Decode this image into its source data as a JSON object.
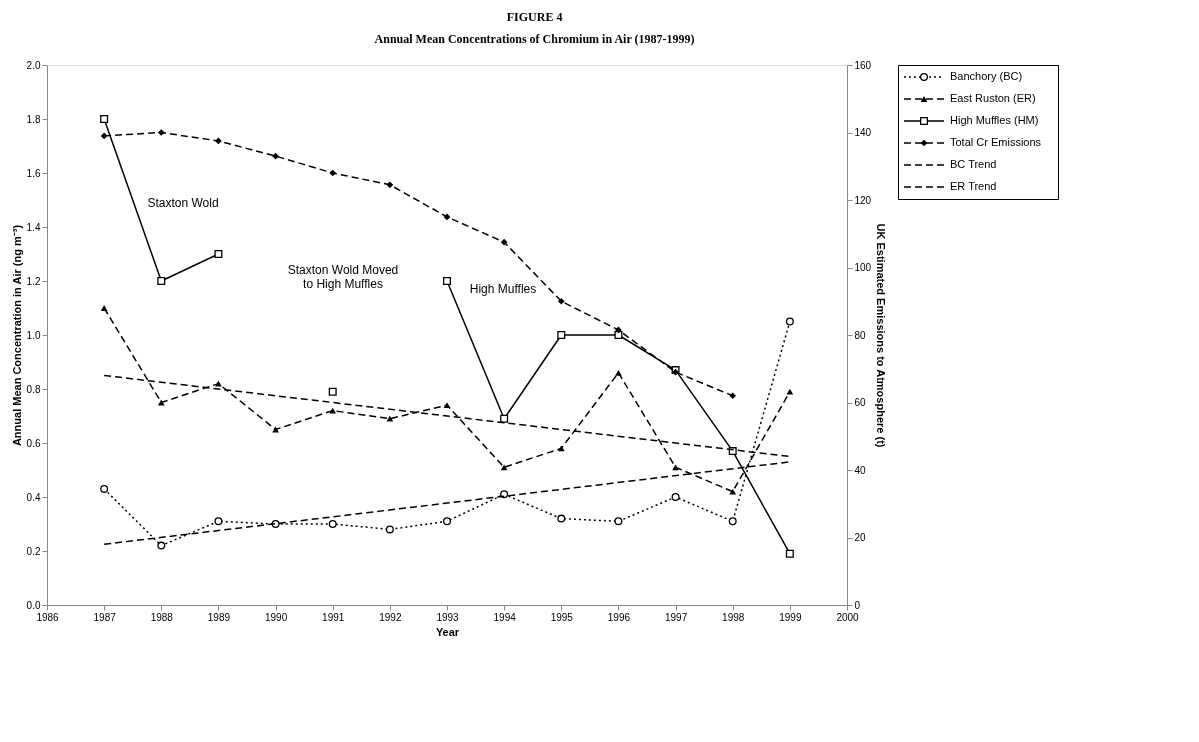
{
  "chart_data": {
    "type": "line",
    "title": "FIGURE 4",
    "subtitle": "Annual Mean Concentrations of Chromium in Air (1987-1999)",
    "xlabel": "Year",
    "ylabel": "Annual Mean Concentration in Air (ng m⁻³)",
    "y2label": "UK Estimated Emissions to Atmosphere (t)",
    "x": [
      1987,
      1988,
      1989,
      1990,
      1991,
      1992,
      1993,
      1994,
      1995,
      1996,
      1997,
      1998,
      1999
    ],
    "series": [
      {
        "name": "Banchory (BC)",
        "color": "#000000",
        "marker": "circle",
        "line_style": "dotted",
        "values": [
          0.43,
          0.22,
          0.31,
          0.3,
          0.3,
          0.28,
          0.31,
          0.41,
          0.32,
          0.31,
          0.4,
          0.31,
          1.05
        ]
      },
      {
        "name": "East Ruston (ER)",
        "color": "#000000",
        "marker": "triangle",
        "line_style": "dashed",
        "values": [
          1.1,
          0.75,
          0.82,
          0.65,
          0.72,
          0.69,
          0.74,
          0.51,
          0.58,
          0.86,
          0.51,
          0.42,
          0.79
        ]
      },
      {
        "name": "High Muffles (HM)",
        "color": "#000000",
        "marker": "square",
        "line_style": "solid",
        "values": [
          1.8,
          1.2,
          1.3,
          null,
          0.79,
          null,
          1.2,
          0.69,
          1.0,
          1.0,
          0.87,
          0.57,
          0.19
        ]
      },
      {
        "name": "Total Cr Emissions",
        "color": "#000000",
        "marker": "diamond",
        "line_style": "dashed",
        "axis": "y2",
        "x": [
          1987,
          1988,
          1989,
          1990,
          1991,
          1992,
          1993,
          1994,
          1995,
          1996,
          1997,
          1998
        ],
        "values": [
          139,
          140,
          137.5,
          133,
          128,
          124.5,
          115,
          107.5,
          90,
          81.5,
          69,
          62
        ]
      },
      {
        "name": "BC Trend",
        "color": "#000000",
        "marker": "none",
        "line_style": "dashed",
        "x": [
          1987,
          1999
        ],
        "values": [
          0.225,
          0.53
        ]
      },
      {
        "name": "ER Trend",
        "color": "#000000",
        "marker": "none",
        "line_style": "dashed",
        "x": [
          1987,
          1999
        ],
        "values": [
          0.85,
          0.55
        ]
      }
    ],
    "xlim": [
      1986,
      2000
    ],
    "xticks": [
      1986,
      1987,
      1988,
      1989,
      1990,
      1991,
      1992,
      1993,
      1994,
      1995,
      1996,
      1997,
      1998,
      1999,
      2000
    ],
    "ylim": [
      0,
      2.0
    ],
    "yticks": [
      {
        "value": 0,
        "label": "0.0"
      },
      0.2,
      0.4,
      0.6,
      0.8,
      {
        "value": 1,
        "label": "1.0"
      },
      1.2,
      1.4,
      1.6,
      1.8,
      {
        "value": 2,
        "label": "2.0"
      }
    ],
    "y2lim": [
      0,
      160
    ],
    "y2ticks": [
      0,
      20,
      40,
      60,
      80,
      100,
      120,
      140,
      160
    ],
    "legend": "right",
    "annotations": [
      "Staxton Wold",
      "Staxton Wold Moved\nto High Muffles",
      "High Muffles"
    ]
  }
}
